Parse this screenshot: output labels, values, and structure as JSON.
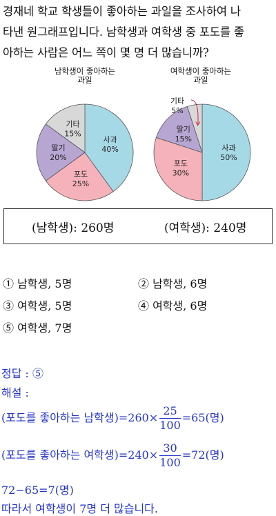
{
  "question": {
    "line1": "경재네 학교 학생들이 좋아하는 과일을 조사하여 나",
    "line2": "타낸 원그래프입니다. 남학생과 여학생 중 포도를 좋",
    "line3": "아하는 사람은 어느 쪽이 몇 명 더 많습니까?"
  },
  "chart_data": [
    {
      "type": "pie",
      "title_line1": "남학생이 좋아하는",
      "title_line2": "과일",
      "slices": [
        {
          "label": "사과",
          "value": 40,
          "value_text": "40%",
          "color": "#a6d9e6"
        },
        {
          "label": "포도",
          "value": 25,
          "value_text": "25%",
          "color": "#f5b2ba"
        },
        {
          "label": "딸기",
          "value": 20,
          "value_text": "20%",
          "color": "#b7a6d2"
        },
        {
          "label": "기타",
          "value": 15,
          "value_text": "15%",
          "color": "#d8d8d8"
        }
      ]
    },
    {
      "type": "pie",
      "title_line1": "여학생이 좋아하는",
      "title_line2": "과일",
      "slices": [
        {
          "label": "사과",
          "value": 50,
          "value_text": "50%",
          "color": "#a6d9e6"
        },
        {
          "label": "포도",
          "value": 30,
          "value_text": "30%",
          "color": "#f5b2ba"
        },
        {
          "label": "딸기",
          "value": 15,
          "value_text": "15%",
          "color": "#b7a6d2"
        },
        {
          "label": "기타",
          "value": 5,
          "value_text": "5%",
          "color": "#d8d8d8"
        }
      ]
    }
  ],
  "info_box": {
    "boys": "(남학생): 260명",
    "girls": "(여학생): 240명"
  },
  "choices": [
    "① 남학생, 5명",
    "② 남학생, 6명",
    "③ 여학생, 5명",
    "④ 여학생, 6명",
    "⑤ 여학생, 7명"
  ],
  "solution": {
    "answer": "정답 : ⑤",
    "heading": "해설 :",
    "line1_prefix": "(포도를 좋아하는 남학생)=260×",
    "line1_num": "25",
    "line1_den": "100",
    "line1_suffix": "=65(명)",
    "line2_prefix": "(포도를 좋아하는 여학생)=240×",
    "line2_num": "30",
    "line2_den": "100",
    "line2_suffix": "=72(명)",
    "line3": "72−65=7(명)",
    "line4": "따라서 여학생이 7명 더 많습니다."
  }
}
